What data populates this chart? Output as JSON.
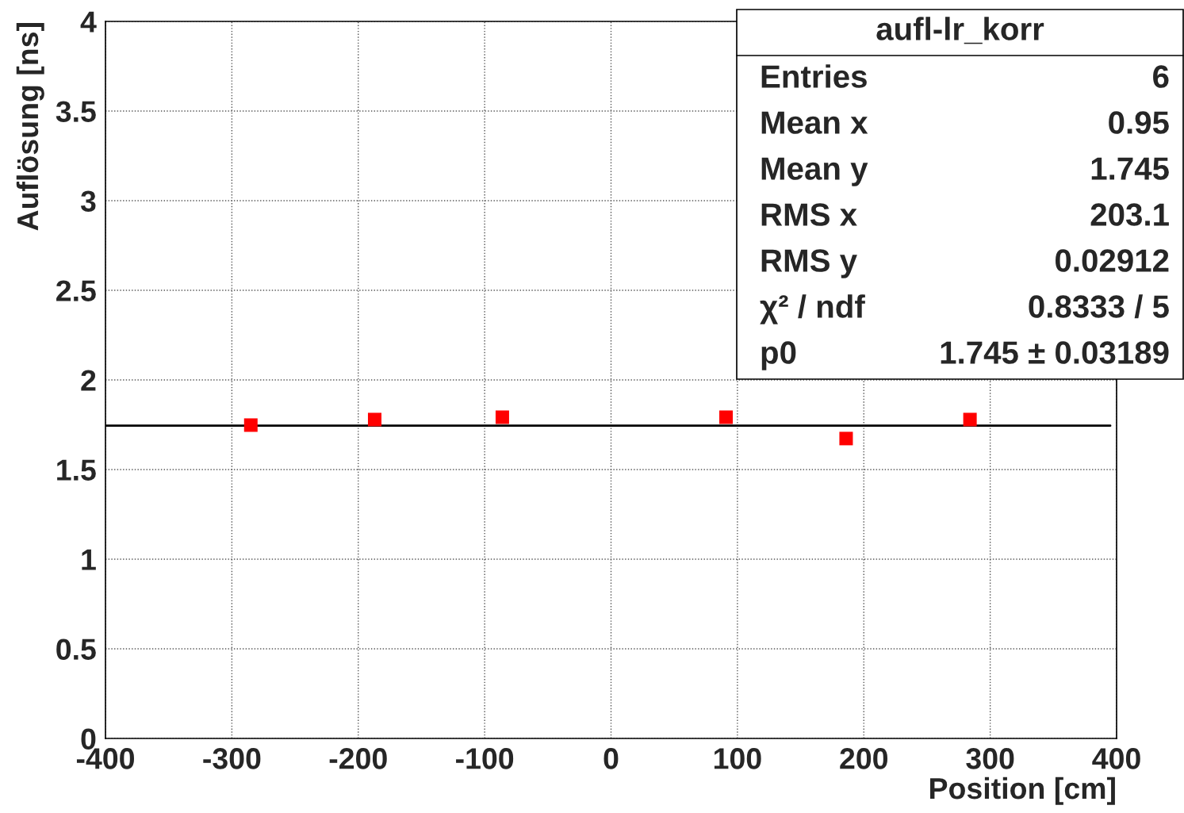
{
  "chart_data": {
    "type": "scatter",
    "title": "aufl-lr_korr",
    "xlabel": "Position [cm]",
    "ylabel": "Auflösung [ns]",
    "series": [
      {
        "color": "#ff0000",
        "marker": "square",
        "x": [
          -285,
          -187,
          -86,
          91,
          186,
          284
        ],
        "values": [
          1.748,
          1.779,
          1.792,
          1.792,
          1.673,
          1.779
        ]
      },
      {
        "type": "line",
        "color": "#000000",
        "marker": "none",
        "line_style": "solid",
        "x": [
          -400,
          395
        ],
        "values": [
          1.745,
          1.745
        ]
      }
    ],
    "xlim": [
      -400,
      400
    ],
    "xticks": [
      -400,
      -300,
      -200,
      -100,
      0,
      100,
      200,
      300,
      400
    ],
    "ylim": [
      0,
      4
    ],
    "yticks": [
      0,
      0.5,
      1,
      1.5,
      2,
      2.5,
      3,
      3.5,
      4
    ],
    "grid": true,
    "annotations": [
      "Entries",
      "6",
      "Mean x",
      "0.95",
      "Mean y",
      "1.745",
      "RMS x",
      "203.1",
      "RMS y",
      "0.02912",
      "χ² / ndf",
      "0.8333 / 5",
      "p0",
      "1.745 ± 0.03189"
    ]
  }
}
